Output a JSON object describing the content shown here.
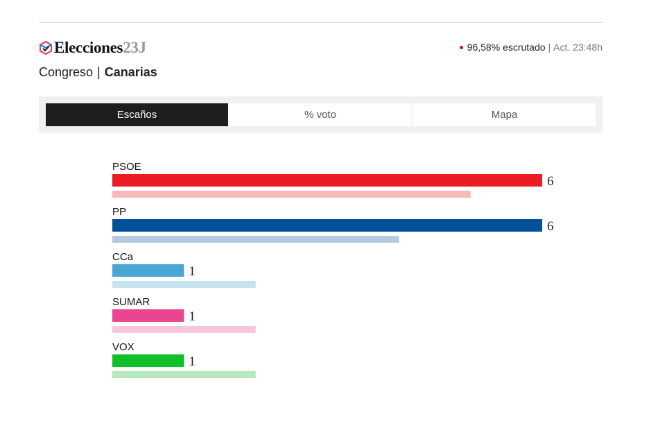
{
  "header": {
    "brand_main": "Elecciones",
    "brand_suffix": "23J",
    "status_dot_color": "#c8102e",
    "scrutiny": "96,58% escrutado",
    "separator": "|",
    "updated": "Act. 23:48h",
    "chamber": "Congreso",
    "region": "Canarias"
  },
  "tabs": [
    {
      "label": "Escaños",
      "active": true
    },
    {
      "label": "% voto",
      "active": false
    },
    {
      "label": "Mapa",
      "active": false
    }
  ],
  "chart_data": {
    "type": "bar",
    "orientation": "horizontal",
    "xlim": [
      0,
      6
    ],
    "categories": [
      "PSOE",
      "PP",
      "CCa",
      "SUMAR",
      "VOX"
    ],
    "series": [
      {
        "values": [
          6,
          6,
          1,
          1,
          1
        ]
      },
      {
        "values": [
          5,
          4,
          2,
          2,
          2
        ]
      }
    ],
    "data_labels": [
      "6",
      "6",
      "1",
      "1",
      "1"
    ],
    "colors": [
      "#ec1c24",
      "#02509a",
      "#4aa7d4",
      "#ea4590",
      "#10c02a"
    ],
    "light_colors": [
      "#f5b8bb",
      "#b3cbe1",
      "#c7e3f1",
      "#f6c6dc",
      "#b6e8be"
    ]
  }
}
